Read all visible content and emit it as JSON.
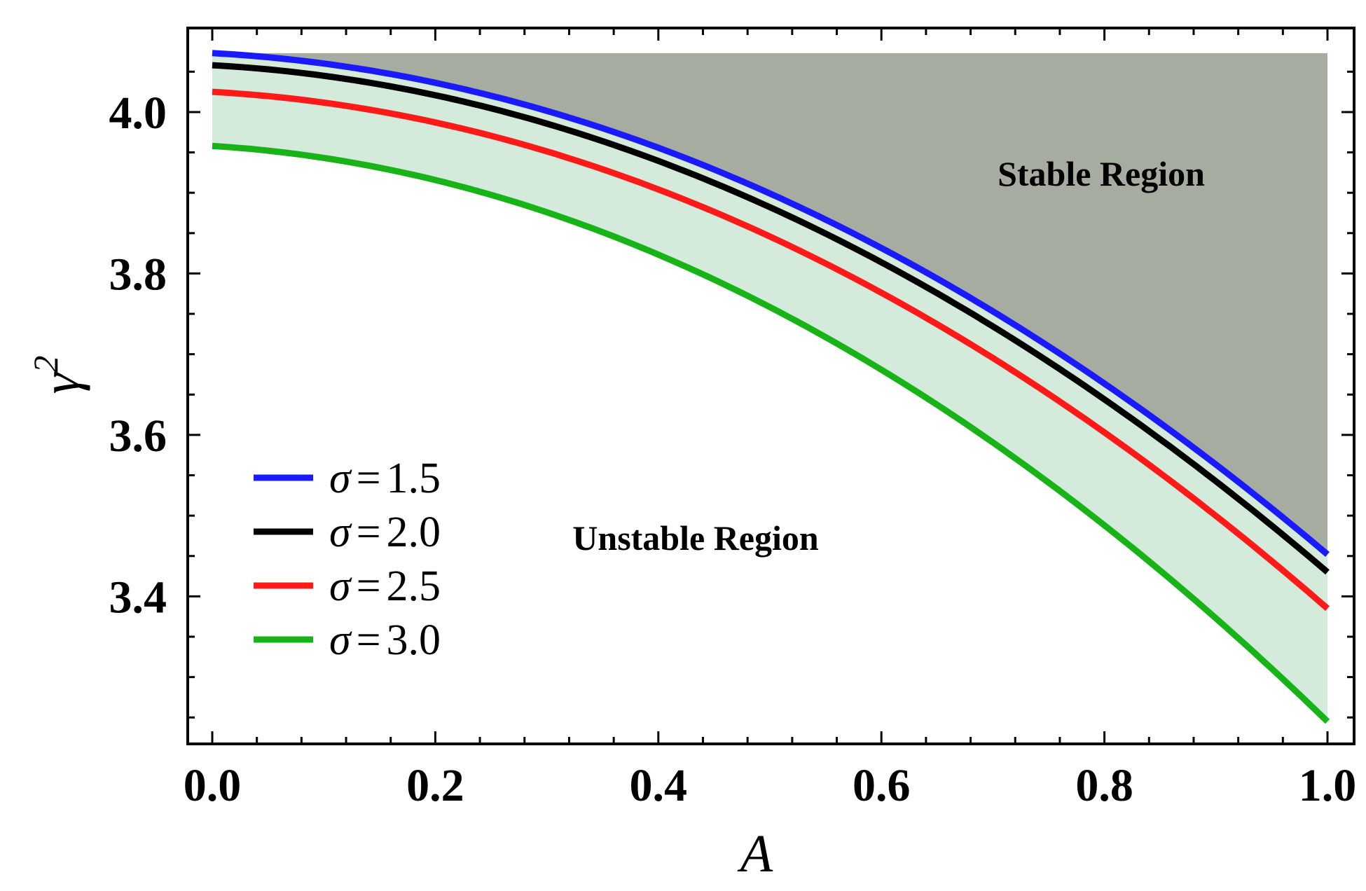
{
  "chart_data": {
    "type": "line",
    "title": "",
    "xlabel": "A",
    "ylabel": "γ",
    "ylabel_superscript": "2",
    "xlim": [
      0.0,
      1.0
    ],
    "ylim": [
      3.245,
      4.085
    ],
    "x_ticks": [
      0.0,
      0.2,
      0.4,
      0.6,
      0.8,
      1.0
    ],
    "x_tick_labels": [
      "0.0",
      "0.2",
      "0.4",
      "0.6",
      "0.8",
      "1.0"
    ],
    "y_ticks": [
      3.4,
      3.6,
      3.8,
      4.0
    ],
    "y_tick_labels": [
      "3.4",
      "3.6",
      "3.8",
      "4.0"
    ],
    "legend_position": "bottom-left",
    "series": [
      {
        "name": "σ = 1.5",
        "sigma_symbol": "σ",
        "equals": "=",
        "sigma_value": "1.5",
        "color": "#1a1aff",
        "y_at_0": 4.073,
        "y_at_1": 3.452
      },
      {
        "name": "σ = 2.0",
        "sigma_symbol": "σ",
        "equals": "=",
        "sigma_value": "2.0",
        "color": "#000000",
        "y_at_0": 4.058,
        "y_at_1": 3.43
      },
      {
        "name": "σ = 2.5",
        "sigma_symbol": "σ",
        "equals": "=",
        "sigma_value": "2.5",
        "color": "#ff1a1a",
        "y_at_0": 4.025,
        "y_at_1": 3.385
      },
      {
        "name": "σ = 3.0",
        "sigma_symbol": "σ",
        "equals": "=",
        "sigma_value": "3.0",
        "color": "#17b317",
        "y_at_0": 3.958,
        "y_at_1": 3.245
      }
    ],
    "regions": [
      {
        "name": "stable",
        "label": "Stable Region",
        "color": "#a6aca0"
      },
      {
        "name": "transition",
        "label": "",
        "color": "#d4eadb"
      }
    ],
    "annotations": [
      {
        "text": "Unstable Region"
      }
    ]
  }
}
